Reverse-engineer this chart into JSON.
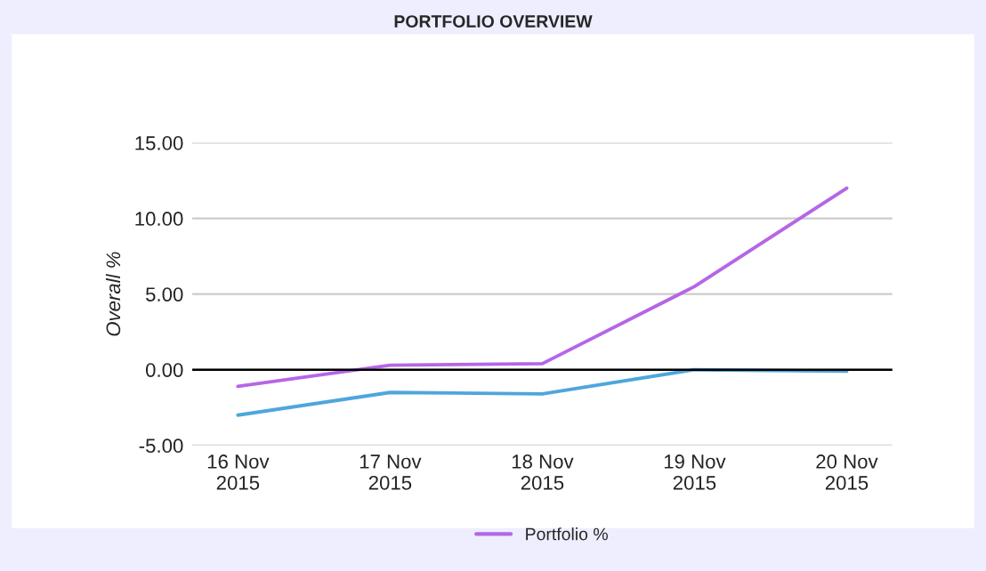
{
  "chart_data": {
    "type": "line",
    "title": "PORTFOLIO OVERVIEW",
    "ylabel": "Overall %",
    "categories": [
      "16 Nov\n2015",
      "17 Nov\n2015",
      "18 Nov\n2015",
      "19 Nov\n2015",
      "20 Nov\n2015"
    ],
    "series": [
      {
        "color": "#4ea6dc",
        "values": [
          -3.0,
          -1.5,
          -1.6,
          0.0,
          -0.1
        ]
      },
      {
        "name": "Portfolio %",
        "color": "#b566e6",
        "values": [
          -1.1,
          0.3,
          0.4,
          5.5,
          12.0
        ]
      }
    ],
    "ylim": [
      -5,
      15
    ],
    "yticks": [
      {
        "value": -5,
        "label": "-5.00"
      },
      {
        "value": 0,
        "label": "0.00"
      },
      {
        "value": 5,
        "label": "5.00"
      },
      {
        "value": 10,
        "label": "10.00"
      },
      {
        "value": 15,
        "label": "15.00"
      }
    ],
    "ref_lines": [
      {
        "axis": "y",
        "value": 0,
        "color": "#000000"
      }
    ],
    "grid": "y",
    "legend": "bottom",
    "marker": "none",
    "line_style": "solid"
  }
}
